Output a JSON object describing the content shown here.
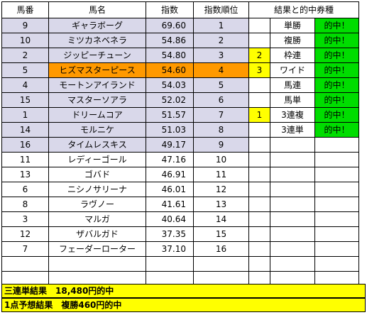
{
  "columns": [
    "馬番",
    "馬名",
    "指数",
    "指数順位",
    "結果と的中券種"
  ],
  "rows": [
    {
      "no": "9",
      "name": "ギャラボーグ",
      "index": "69.60",
      "rank": "1",
      "res_num": "",
      "bet": "単勝",
      "hit": "的中！"
    },
    {
      "no": "10",
      "name": "ミツカネベネラ",
      "index": "54.86",
      "rank": "2",
      "res_num": "",
      "bet": "複勝",
      "hit": "的中！"
    },
    {
      "no": "2",
      "name": "ジッピーチューン",
      "index": "54.80",
      "rank": "3",
      "res_num": "2",
      "bet": "枠連",
      "hit": "的中！"
    },
    {
      "no": "5",
      "name": "ヒズマスターピース",
      "index": "54.60",
      "rank": "4",
      "res_num": "3",
      "bet": "ワイド",
      "hit": "的中！"
    },
    {
      "no": "4",
      "name": "モートンアイランド",
      "index": "54.03",
      "rank": "5",
      "res_num": "",
      "bet": "馬連",
      "hit": "的中！"
    },
    {
      "no": "15",
      "name": "マスターソアラ",
      "index": "52.02",
      "rank": "6",
      "res_num": "",
      "bet": "馬単",
      "hit": "的中！"
    },
    {
      "no": "1",
      "name": "ドリームコア",
      "index": "51.57",
      "rank": "7",
      "res_num": "1",
      "bet": "3連複",
      "hit": "的中！"
    },
    {
      "no": "14",
      "name": "モルニケ",
      "index": "51.03",
      "rank": "8",
      "res_num": "",
      "bet": "3連単",
      "hit": "的中！"
    },
    {
      "no": "16",
      "name": "タイムレスキス",
      "index": "49.17",
      "rank": "9",
      "res_num": "",
      "bet": "",
      "hit": ""
    },
    {
      "no": "11",
      "name": "レディーゴール",
      "index": "47.16",
      "rank": "10",
      "res_num": "",
      "bet": "",
      "hit": ""
    },
    {
      "no": "13",
      "name": "ゴバド",
      "index": "46.91",
      "rank": "11",
      "res_num": "",
      "bet": "",
      "hit": ""
    },
    {
      "no": "6",
      "name": "ニシノサリーナ",
      "index": "46.01",
      "rank": "12",
      "res_num": "",
      "bet": "",
      "hit": ""
    },
    {
      "no": "8",
      "name": "ラヴノー",
      "index": "41.61",
      "rank": "13",
      "res_num": "",
      "bet": "",
      "hit": ""
    },
    {
      "no": "3",
      "name": "マルガ",
      "index": "40.64",
      "rank": "14",
      "res_num": "",
      "bet": "",
      "hit": ""
    },
    {
      "no": "12",
      "name": "ザバルガド",
      "index": "37.35",
      "rank": "15",
      "res_num": "",
      "bet": "",
      "hit": ""
    },
    {
      "no": "7",
      "name": "フェーダーローター",
      "index": "37.10",
      "rank": "16",
      "res_num": "",
      "bet": "",
      "hit": ""
    }
  ],
  "summary": {
    "line1": "三連単結果　18,480円的中",
    "line2": "1点予想結果　複勝460円的中"
  },
  "colors": {
    "highlight_row": "#d9d8ea",
    "top_pick": "#ff9900",
    "result_number": "#ffff00",
    "hit": "#00dd00",
    "summary_bar": "#ffff00"
  }
}
